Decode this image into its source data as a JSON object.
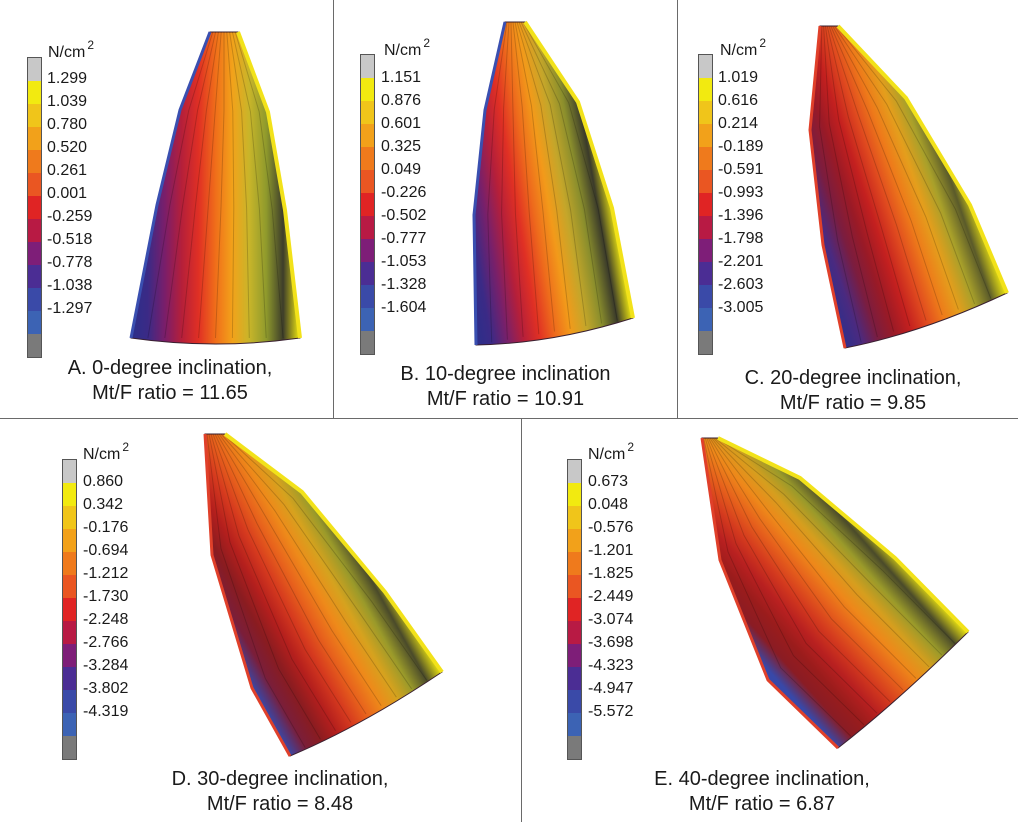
{
  "legend_colors": [
    "#c8c8c8",
    "#f2ea10",
    "#f0c51a",
    "#f2a11a",
    "#ef7a1c",
    "#ea5622",
    "#e02424",
    "#b81a44",
    "#7e1e78",
    "#4b2d94",
    "#3a4aa8",
    "#3c63b4",
    "#7a7a7a"
  ],
  "panels": [
    {
      "unit": "N/cm",
      "unit_exp": "2",
      "ticks": [
        "1.299",
        "1.039",
        "0.780",
        "0.520",
        "0.261",
        "0.001",
        "-0.259",
        "-0.518",
        "-0.778",
        "-1.038",
        "-1.297"
      ],
      "caption_line1": "A. 0-degree inclination,",
      "caption_line2": "Mt/F ratio = 11.65",
      "inclination_deg": 0,
      "mt_f_ratio": 11.65
    },
    {
      "unit": "N/cm",
      "unit_exp": "2",
      "ticks": [
        "1.151",
        "0.876",
        "0.601",
        "0.325",
        "0.049",
        "-0.226",
        "-0.502",
        "-0.777",
        "-1.053",
        "-1.328",
        "-1.604"
      ],
      "caption_line1": "B. 10-degree inclination",
      "caption_line2": "Mt/F ratio = 10.91",
      "inclination_deg": 10,
      "mt_f_ratio": 10.91
    },
    {
      "unit": "N/cm",
      "unit_exp": "2",
      "ticks": [
        "1.019",
        "0.616",
        "0.214",
        "-0.189",
        "-0.591",
        "-0.993",
        "-1.396",
        "-1.798",
        "-2.201",
        "-2.603",
        "-3.005"
      ],
      "caption_line1": "C. 20-degree inclination,",
      "caption_line2": "Mt/F ratio = 9.85",
      "inclination_deg": 20,
      "mt_f_ratio": 9.85
    },
    {
      "unit": "N/cm",
      "unit_exp": "2",
      "ticks": [
        "0.860",
        "0.342",
        "-0.176",
        "-0.694",
        "-1.212",
        "-1.730",
        "-2.248",
        "-2.766",
        "-3.284",
        "-3.802",
        "-4.319"
      ],
      "caption_line1": "D. 30-degree inclination,",
      "caption_line2": "Mt/F ratio = 8.48",
      "inclination_deg": 30,
      "mt_f_ratio": 8.48
    },
    {
      "unit": "N/cm",
      "unit_exp": "2",
      "ticks": [
        "0.673",
        "0.048",
        "-0.576",
        "-1.201",
        "-1.825",
        "-2.449",
        "-3.074",
        "-3.698",
        "-4.323",
        "-4.947",
        "-5.572"
      ],
      "caption_line1": "E. 40-degree inclination,",
      "caption_line2": "Mt/F ratio = 6.87",
      "inclination_deg": 40,
      "mt_f_ratio": 6.87
    }
  ]
}
